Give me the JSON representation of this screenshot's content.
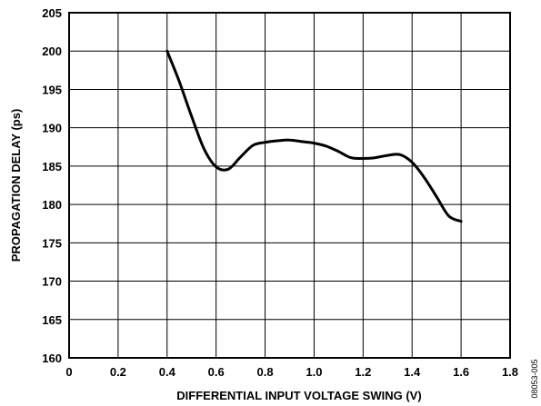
{
  "chart_data": {
    "type": "line",
    "title": "",
    "xlabel": "DIFFERENTIAL INPUT VOLTAGE SWING (V)",
    "ylabel": "PROPAGATION DELAY (ps)",
    "xlim": [
      0,
      1.8
    ],
    "ylim": [
      160,
      205
    ],
    "x_ticks": [
      "0",
      "0.2",
      "0.4",
      "0.6",
      "0.8",
      "1.0",
      "1.2",
      "1.4",
      "1.6",
      "1.8"
    ],
    "y_ticks": [
      "160",
      "165",
      "170",
      "175",
      "180",
      "185",
      "190",
      "195",
      "200",
      "205"
    ],
    "grid": true,
    "legend": "none",
    "series": [
      {
        "x": [
          0.4,
          0.45,
          0.5,
          0.55,
          0.6,
          0.65,
          0.7,
          0.75,
          0.8,
          0.85,
          0.9,
          0.95,
          1.0,
          1.05,
          1.1,
          1.15,
          1.2,
          1.25,
          1.3,
          1.35,
          1.4,
          1.45,
          1.5,
          1.55,
          1.6
        ],
        "y": [
          200,
          196,
          191.5,
          187.3,
          184.9,
          184.6,
          186.2,
          187.7,
          188.1,
          188.3,
          188.4,
          188.2,
          188.0,
          187.6,
          186.9,
          186.1,
          186.0,
          186.1,
          186.4,
          186.5,
          185.5,
          183.5,
          181.0,
          178.5,
          177.8
        ]
      }
    ],
    "annotations": [
      "08053-005"
    ]
  }
}
